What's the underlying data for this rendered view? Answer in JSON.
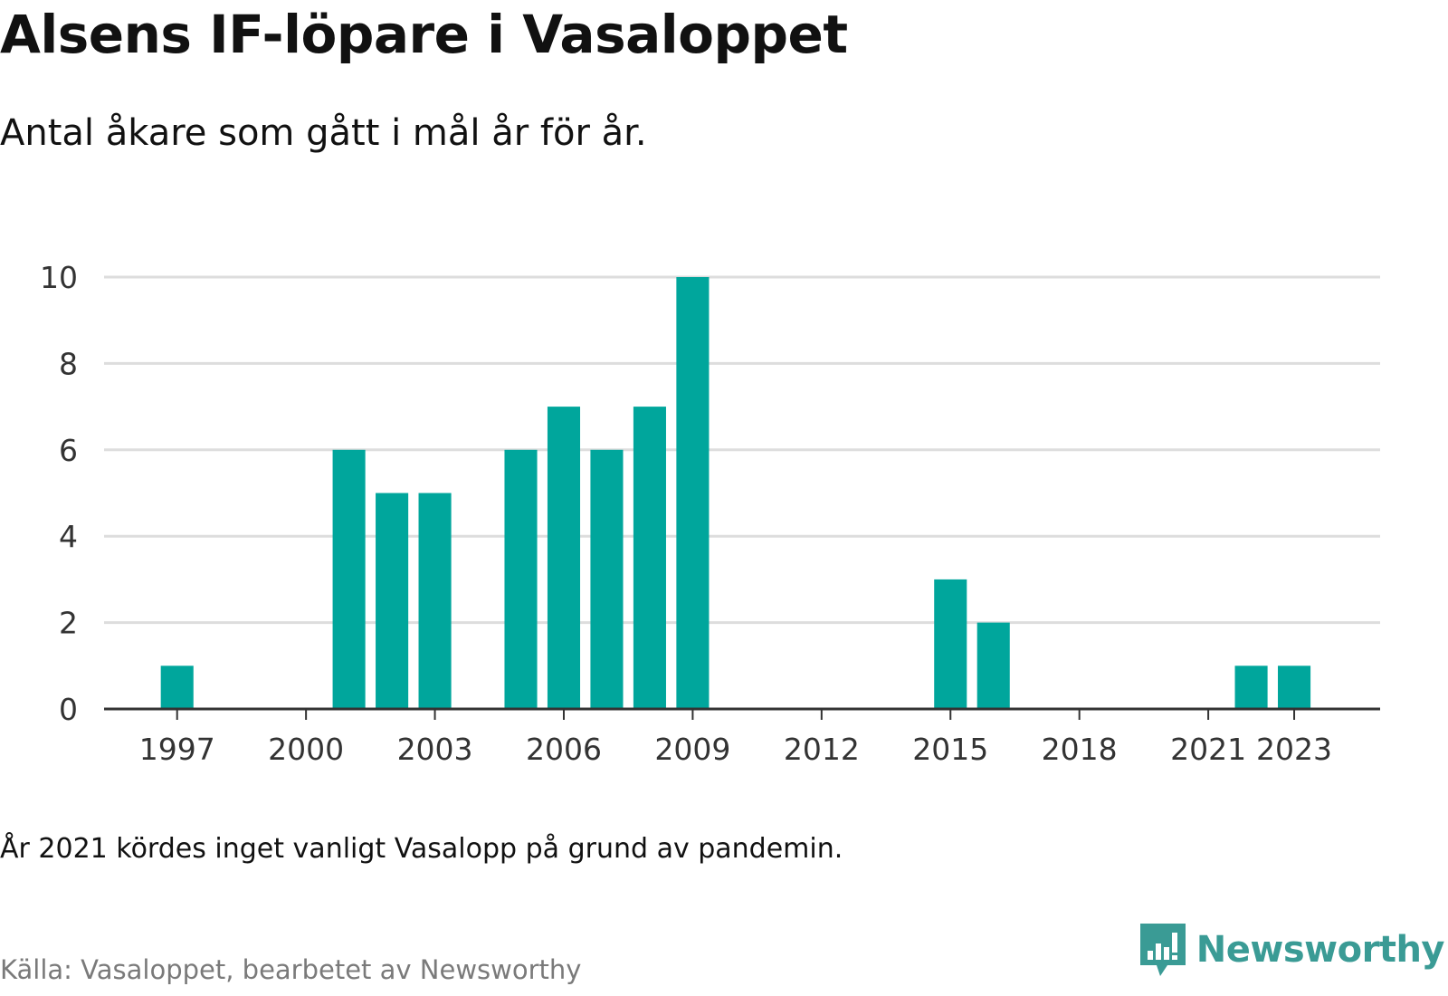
{
  "header": {
    "title": "Alsens IF-löpare i Vasaloppet",
    "subtitle": "Antal åkare som gått i mål år för år."
  },
  "footer": {
    "note": "År 2021 kördes inget vanligt Vasalopp på grund av pandemin.",
    "source": "Källa: Vasaloppet, bearbetet av Newsworthy",
    "brand": "Newsworthy"
  },
  "colors": {
    "bar": "#00a69c",
    "brand": "#3a9b95",
    "grid": "#dddddd",
    "axis": "#333333",
    "tick_text": "#333333"
  },
  "icons": [
    "newsworthy-logo-icon"
  ],
  "chart_data": {
    "type": "bar",
    "x_unit": "year",
    "x": [
      1997,
      1998,
      1999,
      2000,
      2001,
      2002,
      2003,
      2004,
      2005,
      2006,
      2007,
      2008,
      2009,
      2010,
      2011,
      2012,
      2013,
      2014,
      2015,
      2016,
      2017,
      2018,
      2019,
      2020,
      2022,
      2023
    ],
    "values": [
      1,
      0,
      0,
      0,
      6,
      5,
      5,
      0,
      6,
      7,
      6,
      7,
      10,
      0,
      0,
      0,
      0,
      0,
      3,
      2,
      0,
      0,
      0,
      0,
      1,
      1
    ],
    "x_ticks": [
      1997,
      2000,
      2003,
      2006,
      2009,
      2012,
      2015,
      2018,
      2021,
      2023
    ],
    "y_ticks": [
      0,
      2,
      4,
      6,
      8,
      10
    ],
    "ylim": [
      0,
      10
    ],
    "grid": true,
    "xlabel": "",
    "ylabel": ""
  }
}
